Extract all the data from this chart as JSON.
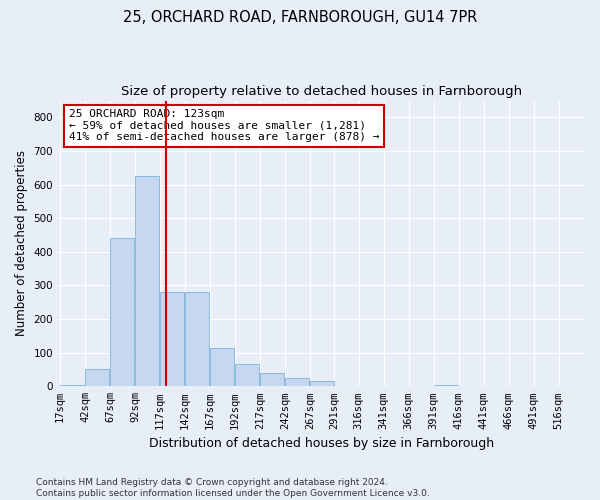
{
  "title_line1": "25, ORCHARD ROAD, FARNBOROUGH, GU14 7PR",
  "title_line2": "Size of property relative to detached houses in Farnborough",
  "xlabel": "Distribution of detached houses by size in Farnborough",
  "ylabel": "Number of detached properties",
  "bar_color": "#c5d8f0",
  "bar_edge_color": "#6fa8d4",
  "background_color": "#e8eef8",
  "grid_color": "#ffffff",
  "bin_labels": [
    "17sqm",
    "42sqm",
    "67sqm",
    "92sqm",
    "117sqm",
    "142sqm",
    "167sqm",
    "192sqm",
    "217sqm",
    "242sqm",
    "267sqm",
    "291sqm",
    "316sqm",
    "341sqm",
    "366sqm",
    "391sqm",
    "416sqm",
    "441sqm",
    "466sqm",
    "491sqm",
    "516sqm"
  ],
  "bar_values": [
    5,
    50,
    440,
    625,
    280,
    280,
    115,
    65,
    40,
    25,
    15,
    0,
    0,
    0,
    0,
    5,
    0,
    0,
    0,
    0,
    0
  ],
  "ylim": [
    0,
    850
  ],
  "yticks": [
    0,
    100,
    200,
    300,
    400,
    500,
    600,
    700,
    800
  ],
  "vline_color": "#cc0000",
  "annotation_text": "25 ORCHARD ROAD: 123sqm\n← 59% of detached houses are smaller (1,281)\n41% of semi-detached houses are larger (878) →",
  "annotation_box_color": "#ffffff",
  "annotation_box_edge": "#cc0000",
  "footnote": "Contains HM Land Registry data © Crown copyright and database right 2024.\nContains public sector information licensed under the Open Government Licence v3.0.",
  "title_fontsize": 10.5,
  "subtitle_fontsize": 9.5,
  "xlabel_fontsize": 9,
  "ylabel_fontsize": 8.5,
  "tick_fontsize": 7.5,
  "annotation_fontsize": 8,
  "footnote_fontsize": 6.5
}
